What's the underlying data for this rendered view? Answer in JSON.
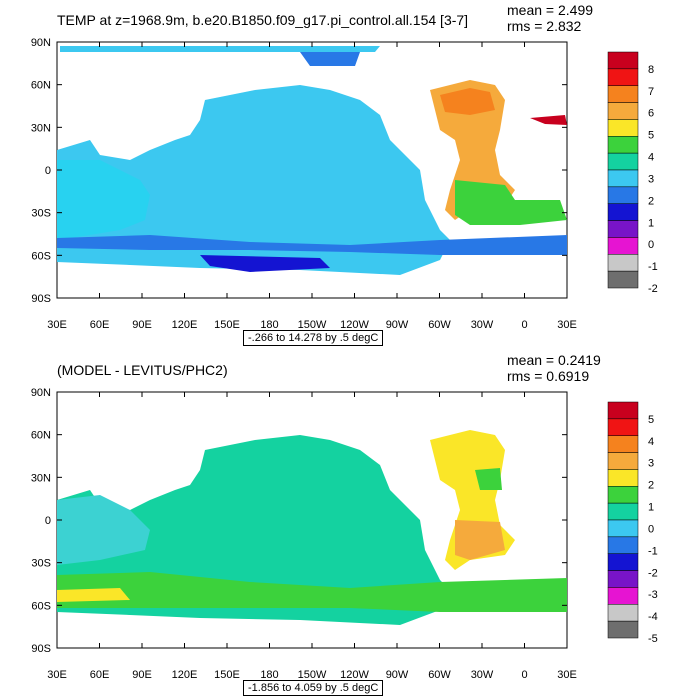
{
  "panels": [
    {
      "title": "TEMP at z=1968.9m, b.e20.B1850.f09_g17.pi_control.all.154 [3-7]",
      "mean": "mean = 2.499",
      "rms": "rms = 2.832",
      "range": "-.266 to 14.278 by .5 degC",
      "colorbar_labels": [
        "8",
        "7",
        "6",
        "5",
        "4",
        "3",
        "2",
        "1",
        "0",
        "-1",
        "-2"
      ],
      "colors": [
        "#c8001e",
        "#f01414",
        "#f5821e",
        "#f5aa3c",
        "#fae628",
        "#3cd23c",
        "#14d2a0",
        "#3cc8f0",
        "#2878e6",
        "#1414d2",
        "#7814c8",
        "#e614d2",
        "#c8c8c8",
        "#6e6e6e"
      ]
    },
    {
      "title": "(MODEL - LEVITUS/PHC2)",
      "mean": "mean = 0.2419",
      "rms": "rms = 0.6919",
      "range": "-1.856 to 4.059 by .5 degC",
      "colorbar_labels": [
        "5",
        "4",
        "3",
        "2",
        "1",
        "0",
        "-1",
        "-2",
        "-3",
        "-4",
        "-5"
      ],
      "colors": [
        "#c8001e",
        "#f01414",
        "#f5821e",
        "#f5aa3c",
        "#fae628",
        "#3cd23c",
        "#14d2a0",
        "#3cc8f0",
        "#2878e6",
        "#1414d2",
        "#7814c8",
        "#e614d2",
        "#c8c8c8",
        "#6e6e6e"
      ]
    }
  ],
  "lat_labels": [
    "90N",
    "60N",
    "30N",
    "0",
    "30S",
    "60S",
    "90S"
  ],
  "lon_labels": [
    "30E",
    "60E",
    "90E",
    "120E",
    "150E",
    "180",
    "150W",
    "120W",
    "90W",
    "60W",
    "30W",
    "0",
    "30E"
  ]
}
